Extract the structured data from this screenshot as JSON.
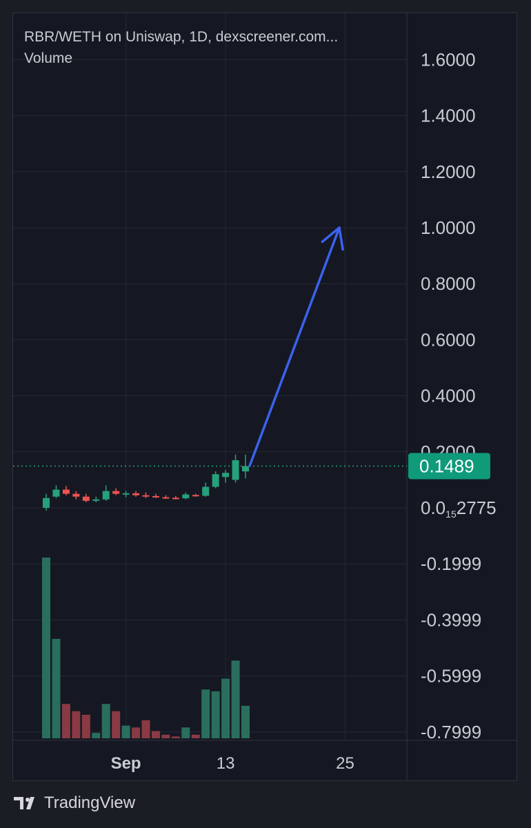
{
  "header": {
    "title": "RBR/WETH on Uniswap, 1D, dexscreener.com...",
    "subtitle": "Volume"
  },
  "footer": {
    "brand": "TradingView"
  },
  "colors": {
    "up": "#26a17b",
    "down": "#ef5350",
    "vol_up": "#2a6e5e",
    "vol_down": "#8a3a44",
    "grid": "#262a34",
    "axis_text": "#c9ccd3",
    "price_label_bg": "#0f9a7a",
    "arrow": "#3a62f0"
  },
  "chart_data": {
    "type": "candlestick",
    "pair": "RBR/WETH",
    "exchange": "Uniswap",
    "interval": "1D",
    "y_ticks": [
      "1.6000",
      "1.4000",
      "1.2000",
      "1.0000",
      "0.8000",
      "0.6000",
      "0.4000",
      "0.2000",
      "-0.1999",
      "-0.3999",
      "-0.5999",
      "-0.7999"
    ],
    "y_tick_values": [
      1.6,
      1.4,
      1.2,
      1.0,
      0.8,
      0.6,
      0.4,
      0.2,
      -0.2,
      -0.4,
      -0.6,
      -0.8
    ],
    "zero_label": {
      "pre": "0.0",
      "sub": "15",
      "post": "2775"
    },
    "ylim": [
      -0.8,
      1.6
    ],
    "x_ticks": [
      {
        "label": "Sep",
        "day": 8
      },
      {
        "label": "13",
        "day": 18
      },
      {
        "label": "25",
        "day": 30
      }
    ],
    "last_price": 0.1489,
    "last_price_label": "0.1489",
    "candles": [
      {
        "day": 0,
        "open": 0.0,
        "high": 0.05,
        "low": -0.01,
        "close": 0.035
      },
      {
        "day": 1,
        "open": 0.04,
        "high": 0.08,
        "low": 0.035,
        "close": 0.065
      },
      {
        "day": 2,
        "open": 0.065,
        "high": 0.078,
        "low": 0.045,
        "close": 0.05
      },
      {
        "day": 3,
        "open": 0.05,
        "high": 0.06,
        "low": 0.03,
        "close": 0.04
      },
      {
        "day": 4,
        "open": 0.04,
        "high": 0.05,
        "low": 0.02,
        "close": 0.025
      },
      {
        "day": 5,
        "open": 0.025,
        "high": 0.04,
        "low": 0.02,
        "close": 0.03
      },
      {
        "day": 6,
        "open": 0.03,
        "high": 0.08,
        "low": 0.025,
        "close": 0.06
      },
      {
        "day": 7,
        "open": 0.06,
        "high": 0.07,
        "low": 0.045,
        "close": 0.05
      },
      {
        "day": 8,
        "open": 0.048,
        "high": 0.06,
        "low": 0.038,
        "close": 0.052
      },
      {
        "day": 9,
        "open": 0.052,
        "high": 0.06,
        "low": 0.04,
        "close": 0.045
      },
      {
        "day": 10,
        "open": 0.045,
        "high": 0.055,
        "low": 0.035,
        "close": 0.042
      },
      {
        "day": 11,
        "open": 0.042,
        "high": 0.05,
        "low": 0.035,
        "close": 0.038
      },
      {
        "day": 12,
        "open": 0.038,
        "high": 0.045,
        "low": 0.032,
        "close": 0.036
      },
      {
        "day": 13,
        "open": 0.036,
        "high": 0.042,
        "low": 0.03,
        "close": 0.034
      },
      {
        "day": 14,
        "open": 0.034,
        "high": 0.055,
        "low": 0.03,
        "close": 0.048
      },
      {
        "day": 15,
        "open": 0.046,
        "high": 0.05,
        "low": 0.04,
        "close": 0.043
      },
      {
        "day": 16,
        "open": 0.043,
        "high": 0.09,
        "low": 0.04,
        "close": 0.075
      },
      {
        "day": 17,
        "open": 0.075,
        "high": 0.13,
        "low": 0.07,
        "close": 0.12
      },
      {
        "day": 18,
        "open": 0.11,
        "high": 0.135,
        "low": 0.09,
        "close": 0.125
      },
      {
        "day": 19,
        "open": 0.1,
        "high": 0.19,
        "low": 0.09,
        "close": 0.17
      },
      {
        "day": 20,
        "open": 0.13,
        "high": 0.19,
        "low": 0.105,
        "close": 0.1489
      }
    ],
    "volume": [
      {
        "day": 0,
        "value": 100,
        "dir": "up"
      },
      {
        "day": 1,
        "value": 55,
        "dir": "up"
      },
      {
        "day": 2,
        "value": 19,
        "dir": "down"
      },
      {
        "day": 3,
        "value": 15,
        "dir": "down"
      },
      {
        "day": 4,
        "value": 13,
        "dir": "down"
      },
      {
        "day": 5,
        "value": 3,
        "dir": "up"
      },
      {
        "day": 6,
        "value": 19,
        "dir": "up"
      },
      {
        "day": 7,
        "value": 15,
        "dir": "down"
      },
      {
        "day": 8,
        "value": 7,
        "dir": "up"
      },
      {
        "day": 9,
        "value": 6,
        "dir": "down"
      },
      {
        "day": 10,
        "value": 10,
        "dir": "down"
      },
      {
        "day": 11,
        "value": 4,
        "dir": "down"
      },
      {
        "day": 12,
        "value": 2,
        "dir": "down"
      },
      {
        "day": 13,
        "value": 1,
        "dir": "down"
      },
      {
        "day": 14,
        "value": 6,
        "dir": "up"
      },
      {
        "day": 15,
        "value": 2,
        "dir": "down"
      },
      {
        "day": 16,
        "value": 27,
        "dir": "up"
      },
      {
        "day": 17,
        "value": 26,
        "dir": "up"
      },
      {
        "day": 18,
        "value": 33,
        "dir": "up"
      },
      {
        "day": 19,
        "value": 43,
        "dir": "up"
      },
      {
        "day": 20,
        "value": 18,
        "dir": "up"
      }
    ],
    "annotation": {
      "type": "arrow",
      "from": {
        "day": 20,
        "price": 0.15
      },
      "to": {
        "day": 29,
        "price": 1.0
      }
    }
  }
}
